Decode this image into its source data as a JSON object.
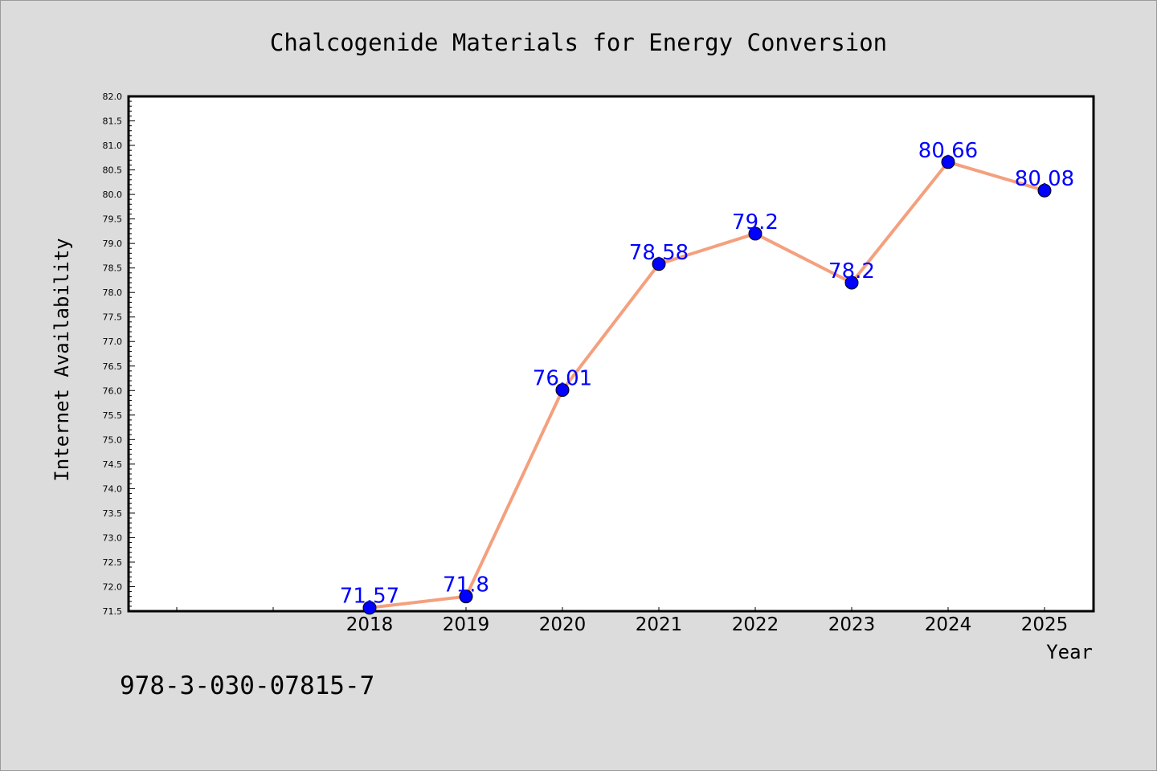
{
  "chart_data": {
    "type": "line",
    "title": "Chalcogenide Materials for Energy Conversion",
    "xlabel": "Year",
    "ylabel": "Internet Availability",
    "x": [
      "2018",
      "2019",
      "2020",
      "2021",
      "2022",
      "2023",
      "2024",
      "2025"
    ],
    "series": [
      {
        "values": [
          71.57,
          71.8,
          76.01,
          78.58,
          79.2,
          78.2,
          80.66,
          80.08
        ],
        "data_labels": [
          "71.57",
          "71.8",
          "76.01",
          "78.58",
          "79.2",
          "78.2",
          "80.66",
          "80.08"
        ],
        "line_color": "#f4a07e",
        "marker_color": "#0000ff"
      }
    ],
    "ylim": [
      71.5,
      82.0
    ],
    "yticks": [
      "71.5",
      "72.0",
      "72.5",
      "73.0",
      "73.5",
      "74.0",
      "74.5",
      "75.0",
      "75.5",
      "76.0",
      "76.5",
      "77.0",
      "77.5",
      "78.0",
      "78.5",
      "79.0",
      "79.5",
      "80.0",
      "80.5",
      "81.0",
      "81.5",
      "82.0"
    ],
    "grid": false,
    "legend": "none"
  },
  "annotation": {
    "isbn": "978-3-030-07815-7"
  },
  "colors": {
    "background": "#dcdcdc",
    "plot_background": "#ffffff",
    "line": "#f4a07e",
    "marker": "#0000ff",
    "data_label": "#0000ff"
  }
}
